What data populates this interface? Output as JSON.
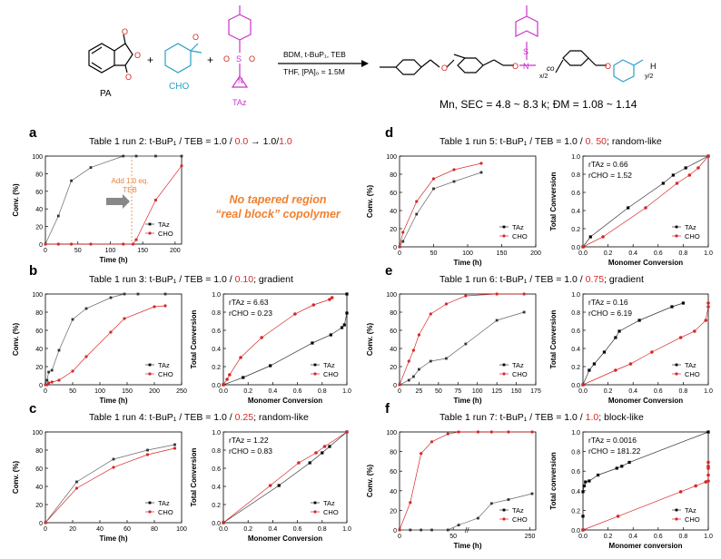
{
  "scheme": {
    "pa_label": "PA",
    "cho_label": "CHO",
    "taz_label": "TAz",
    "conditions_top": "BDM, t-BuP₁, TEB",
    "conditions_bottom": "THF, [PA]₀ = 1.5M",
    "plus": "+",
    "co": "co",
    "sub_x2": "x/2",
    "sub_y2": "y/2",
    "h_end": "H",
    "mn_text": "Mn, SEC = 4.8 ~ 8.3 k; ĐM = 1.08 ~ 1.14"
  },
  "panels": {
    "a": {
      "letter": "a",
      "title_black": "Table 1 run 2: t-BuP₁ / TEB = 1.0 / ",
      "title_red1": "0.0",
      "title_mid": " → 1.0/",
      "title_red2": "1.0",
      "title_end": ""
    },
    "b": {
      "letter": "b",
      "title_black": "Table 1 run 3: t-BuP₁ / TEB = 1.0 / ",
      "title_red1": "0.10",
      "title_end": "; gradient"
    },
    "c": {
      "letter": "c",
      "title_black": "Table 1 run 4: t-BuP₁ / TEB = 1.0 / ",
      "title_red1": "0.25",
      "title_end": "; random-like"
    },
    "d": {
      "letter": "d",
      "title_black": "Table 1 run 5: t-BuP₁ / TEB = 1.0 / ",
      "title_red1": "0. 50",
      "title_end": "; random-like"
    },
    "e": {
      "letter": "e",
      "title_black": "Table 1 run 6: t-BuP₁ / TEB = 1.0 / ",
      "title_red1": "0.75",
      "title_end": "; gradient"
    },
    "f": {
      "letter": "f",
      "title_black": "Table 1 run 7: t-BuP₁ / TEB = 1.0 / ",
      "title_red1": "1.0",
      "title_end": "; block-like"
    }
  },
  "note_a": {
    "line1": "No tapered region",
    "line2": "“real block” copolymer",
    "arrow_line1": "Add 1.0 eq.",
    "arrow_line2": "TEB"
  },
  "colors": {
    "taz": "#333333",
    "cho": "#d62828",
    "note": "#f08030",
    "magenta": "#cc33cc",
    "cyan": "#2aa0c8"
  },
  "chart_data": [
    {
      "id": "a",
      "type": "line",
      "xlabel": "Time (h)",
      "ylabel": "Conv. (%)",
      "xlim": [
        0,
        210
      ],
      "ylim": [
        0,
        100
      ],
      "xticks": [
        0,
        50,
        100,
        150,
        200
      ],
      "yticks": [
        0,
        20,
        40,
        60,
        80,
        100
      ],
      "legend": "bottom-right",
      "series": [
        {
          "name": "TAz",
          "x": [
            0,
            20,
            40,
            70,
            120,
            140,
            170,
            210
          ],
          "y": [
            0,
            32,
            72,
            87,
            100,
            100,
            100,
            100
          ]
        },
        {
          "name": "CHO",
          "x": [
            0,
            20,
            40,
            70,
            120,
            135,
            140,
            170,
            210
          ],
          "y": [
            0,
            0,
            0,
            0,
            0,
            0,
            5,
            50,
            89
          ]
        }
      ]
    },
    {
      "id": "b1",
      "type": "line",
      "xlabel": "Time (h)",
      "ylabel": "Conv. (%)",
      "xlim": [
        0,
        250
      ],
      "ylim": [
        0,
        100
      ],
      "xticks": [
        0,
        50,
        100,
        150,
        200,
        250
      ],
      "yticks": [
        0,
        20,
        40,
        60,
        80,
        100
      ],
      "legend": "bottom-right",
      "series": [
        {
          "name": "TAz",
          "x": [
            0,
            3,
            6,
            12,
            25,
            50,
            75,
            120,
            145,
            170,
            220
          ],
          "y": [
            0,
            5,
            14,
            16,
            38,
            72,
            84,
            96,
            100,
            100,
            100
          ]
        },
        {
          "name": "CHO",
          "x": [
            0,
            3,
            6,
            12,
            25,
            50,
            75,
            120,
            145,
            200,
            220
          ],
          "y": [
            0,
            0,
            2,
            3,
            5,
            15,
            31,
            58,
            73,
            86,
            87
          ]
        }
      ]
    },
    {
      "id": "b2",
      "type": "scatter",
      "xlabel": "Monomer Conversion",
      "ylabel": "Total Conversion",
      "xlim": [
        0,
        1
      ],
      "ylim": [
        0,
        1
      ],
      "xticks": [
        0.0,
        0.2,
        0.4,
        0.6,
        0.8,
        1.0
      ],
      "yticks": [
        0.0,
        0.2,
        0.4,
        0.6,
        0.8,
        1.0
      ],
      "legend": "bottom-right",
      "r_taz": "rTAz = 6.63",
      "r_cho": "rCHO = 0.23",
      "series": [
        {
          "name": "TAz",
          "x": [
            0,
            0.16,
            0.38,
            0.72,
            0.87,
            0.96,
            0.98,
            1.0,
            1.0
          ],
          "y": [
            0,
            0.08,
            0.21,
            0.46,
            0.55,
            0.63,
            0.66,
            0.79,
            1.0
          ]
        },
        {
          "name": "CHO",
          "x": [
            0,
            0.03,
            0.05,
            0.14,
            0.31,
            0.58,
            0.73,
            0.86,
            0.88
          ],
          "y": [
            0,
            0.06,
            0.11,
            0.3,
            0.52,
            0.78,
            0.88,
            0.94,
            0.96
          ]
        }
      ]
    },
    {
      "id": "c1",
      "type": "line",
      "xlabel": "Time (h)",
      "ylabel": "Conv. (%)",
      "xlim": [
        0,
        100
      ],
      "ylim": [
        0,
        100
      ],
      "xticks": [
        0,
        20,
        40,
        60,
        80,
        100
      ],
      "yticks": [
        0,
        20,
        40,
        60,
        80,
        100
      ],
      "legend": "bottom-right",
      "series": [
        {
          "name": "TAz",
          "x": [
            0,
            23,
            50,
            75,
            95
          ],
          "y": [
            0,
            45,
            70,
            80,
            86
          ]
        },
        {
          "name": "CHO",
          "x": [
            0,
            23,
            50,
            75,
            95
          ],
          "y": [
            0,
            38,
            61,
            75,
            82
          ]
        }
      ]
    },
    {
      "id": "c2",
      "type": "scatter",
      "xlabel": "Monomer Conversion",
      "ylabel": "Total Conversion",
      "xlim": [
        0,
        1
      ],
      "ylim": [
        0,
        1
      ],
      "xticks": [
        0.0,
        0.2,
        0.4,
        0.6,
        0.8,
        1.0
      ],
      "yticks": [
        0.0,
        0.2,
        0.4,
        0.6,
        0.8,
        1.0
      ],
      "legend": "bottom-right",
      "r_taz": "rTAz = 1.22",
      "r_cho": "rCHO = 0.83",
      "series": [
        {
          "name": "TAz",
          "x": [
            0,
            0.45,
            0.7,
            0.8,
            0.86,
            1.0
          ],
          "y": [
            0,
            0.41,
            0.66,
            0.77,
            0.84,
            1.0
          ]
        },
        {
          "name": "CHO",
          "x": [
            0,
            0.38,
            0.61,
            0.75,
            0.82,
            1.0
          ],
          "y": [
            0,
            0.41,
            0.66,
            0.77,
            0.84,
            1.0
          ]
        }
      ]
    },
    {
      "id": "d1",
      "type": "line",
      "xlabel": "Time (h)",
      "ylabel": "Conv. (%)",
      "xlim": [
        0,
        200
      ],
      "ylim": [
        0,
        100
      ],
      "xticks": [
        0,
        50,
        100,
        150,
        200
      ],
      "yticks": [
        0,
        20,
        40,
        60,
        80,
        100
      ],
      "legend": "bottom-right",
      "series": [
        {
          "name": "TAz",
          "x": [
            0,
            5,
            25,
            50,
            80,
            120
          ],
          "y": [
            0,
            6,
            36,
            64,
            72,
            82
          ]
        },
        {
          "name": "CHO",
          "x": [
            0,
            5,
            25,
            50,
            80,
            120
          ],
          "y": [
            0,
            16,
            50,
            75,
            85,
            92
          ]
        }
      ]
    },
    {
      "id": "d2",
      "type": "scatter",
      "xlabel": "Monomer Conversion",
      "ylabel": "Total Conversion",
      "xlim": [
        0,
        1
      ],
      "ylim": [
        0,
        1
      ],
      "xticks": [
        0.0,
        0.2,
        0.4,
        0.6,
        0.8,
        1.0
      ],
      "yticks": [
        0.0,
        0.2,
        0.4,
        0.6,
        0.8,
        1.0
      ],
      "legend": "bottom-right",
      "r_taz": "rTAz = 0.66",
      "r_cho": "rCHO = 1.52",
      "series": [
        {
          "name": "TAz",
          "x": [
            0,
            0.06,
            0.36,
            0.64,
            0.72,
            0.82,
            1.0
          ],
          "y": [
            0,
            0.11,
            0.43,
            0.7,
            0.79,
            0.87,
            1.0
          ]
        },
        {
          "name": "CHO",
          "x": [
            0,
            0.16,
            0.5,
            0.75,
            0.85,
            0.92,
            1.0
          ],
          "y": [
            0,
            0.11,
            0.43,
            0.7,
            0.79,
            0.87,
            1.0
          ]
        }
      ]
    },
    {
      "id": "e1",
      "type": "line",
      "xlabel": "Time (h)",
      "ylabel": "Conv. (%)",
      "xlim": [
        0,
        175
      ],
      "ylim": [
        0,
        100
      ],
      "xticks": [
        0,
        25,
        50,
        75,
        100,
        125,
        150,
        175
      ],
      "yticks": [
        0,
        20,
        40,
        60,
        80,
        100
      ],
      "legend": "bottom-right",
      "series": [
        {
          "name": "TAz",
          "x": [
            0,
            12,
            18,
            25,
            40,
            60,
            85,
            125,
            160
          ],
          "y": [
            0,
            5,
            9,
            17,
            26,
            29,
            45,
            71,
            80
          ]
        },
        {
          "name": "CHO",
          "x": [
            0,
            12,
            18,
            25,
            40,
            60,
            85,
            125,
            160
          ],
          "y": [
            0,
            26,
            38,
            55,
            78,
            89,
            98,
            100,
            100
          ]
        }
      ]
    },
    {
      "id": "e2",
      "type": "scatter",
      "xlabel": "Monomer Conversion",
      "ylabel": "Total Conversion",
      "xlim": [
        0,
        1
      ],
      "ylim": [
        0,
        1
      ],
      "xticks": [
        0.0,
        0.2,
        0.4,
        0.6,
        0.8,
        1.0
      ],
      "yticks": [
        0.0,
        0.2,
        0.4,
        0.6,
        0.8,
        1.0
      ],
      "legend": "bottom-right",
      "r_taz": "rTAz = 0.16",
      "r_cho": "rCHO = 6.19",
      "series": [
        {
          "name": "TAz",
          "x": [
            0,
            0.05,
            0.09,
            0.17,
            0.26,
            0.29,
            0.45,
            0.71,
            0.8
          ],
          "y": [
            0,
            0.16,
            0.23,
            0.36,
            0.52,
            0.59,
            0.71,
            0.86,
            0.9
          ]
        },
        {
          "name": "CHO",
          "x": [
            0,
            0.26,
            0.38,
            0.55,
            0.78,
            0.89,
            0.98,
            1.0,
            1.0
          ],
          "y": [
            0,
            0.16,
            0.23,
            0.36,
            0.52,
            0.59,
            0.71,
            0.86,
            0.9
          ]
        }
      ]
    },
    {
      "id": "f1",
      "type": "line",
      "xlabel": "Time (h)",
      "ylabel": "Conv. (%)",
      "xlim": [
        0,
        260
      ],
      "ylim": [
        0,
        100
      ],
      "xticks": [
        0,
        50,
        250
      ],
      "yticks": [
        0,
        20,
        40,
        60,
        80,
        100
      ],
      "legend": "bottom-right",
      "axis_break": true,
      "series": [
        {
          "name": "TAz",
          "x": [
            0,
            10,
            20,
            30,
            45,
            55,
            80,
            120,
            170,
            240
          ],
          "y": [
            0,
            0,
            0,
            0,
            0,
            5,
            12,
            27,
            31,
            37
          ]
        },
        {
          "name": "CHO",
          "x": [
            0,
            10,
            20,
            30,
            45,
            55,
            80,
            120,
            170,
            240
          ],
          "y": [
            0,
            28,
            78,
            90,
            98,
            100,
            100,
            100,
            100,
            100
          ]
        }
      ]
    },
    {
      "id": "f2",
      "type": "scatter",
      "xlabel": "Monomer conversion",
      "ylabel": "Total conversion",
      "xlim": [
        0,
        1
      ],
      "ylim": [
        0,
        1
      ],
      "xticks": [
        0.0,
        0.2,
        0.4,
        0.6,
        0.8,
        1.0
      ],
      "yticks": [
        0.0,
        0.2,
        0.4,
        0.6,
        0.8,
        1.0
      ],
      "legend": "bottom-right",
      "r_taz": "rTAz = 0.0016",
      "r_cho": "rCHO = 181.22",
      "series": [
        {
          "name": "TAz",
          "x": [
            0,
            0,
            0,
            0.01,
            0.02,
            0.05,
            0.12,
            0.27,
            0.31,
            0.37,
            1.0
          ],
          "y": [
            0,
            0.14,
            0.39,
            0.45,
            0.49,
            0.5,
            0.56,
            0.63,
            0.65,
            0.69,
            1.0
          ]
        },
        {
          "name": "CHO",
          "x": [
            0,
            0.28,
            0.78,
            0.9,
            0.98,
            1.0,
            1.0,
            1.0,
            1.0,
            1.0
          ],
          "y": [
            0,
            0.14,
            0.39,
            0.45,
            0.49,
            0.5,
            0.56,
            0.63,
            0.65,
            0.69
          ]
        }
      ]
    }
  ]
}
